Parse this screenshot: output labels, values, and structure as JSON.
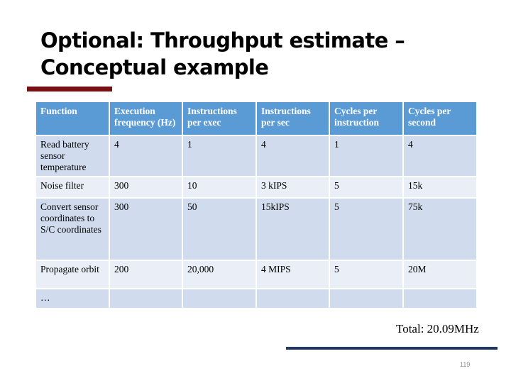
{
  "title": "Optional: Throughput estimate – Conceptual example",
  "table": {
    "headers": [
      "Function",
      "Execution frequency (Hz)",
      "Instructions per exec",
      "Instructions per sec",
      "Cycles per instruction",
      "Cycles per second"
    ],
    "rows": [
      [
        "Read battery sensor temperature",
        "4",
        "1",
        "4",
        "1",
        "4"
      ],
      [
        "Noise filter",
        "300",
        "10",
        "3 kIPS",
        "5",
        "15k"
      ],
      [
        "Convert sensor coordinates to S/C coordinates",
        "300",
        "50",
        "15kIPS",
        "5",
        "75k"
      ],
      [
        "Propagate orbit",
        "200",
        "20,000",
        "4 MIPS",
        "5",
        "20M"
      ],
      [
        "…",
        "",
        "",
        "",
        "",
        ""
      ]
    ]
  },
  "total": "Total: 20.09MHz",
  "page_number": "119",
  "colors": {
    "header_fill": "#5b9bd5",
    "row_dark": "#d0dcee",
    "row_light": "#e9eef7",
    "title_accent": "#7a0f13",
    "footer_accent": "#1f3864"
  }
}
